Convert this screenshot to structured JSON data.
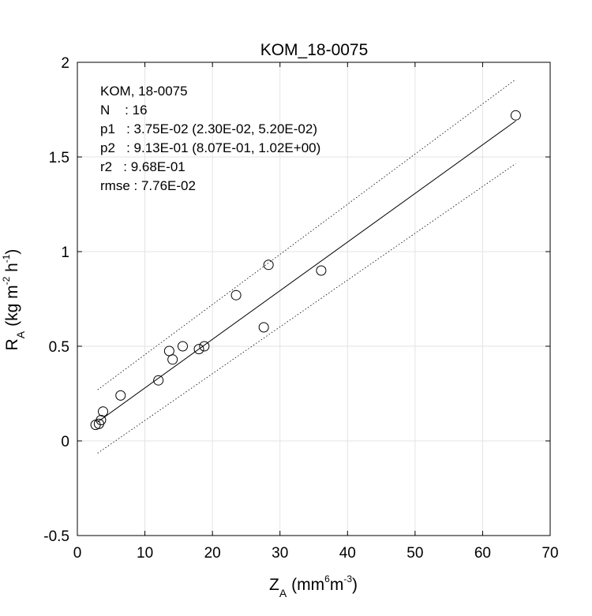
{
  "chart_data": {
    "type": "scatter",
    "title": "KOM_18-0075",
    "xlabel": {
      "main": "Z",
      "sub": "A",
      "pre": "(mm",
      "sup1": "6",
      "mid": "m",
      "sup2": "-3",
      "post": ")"
    },
    "ylabel": {
      "main": "R",
      "sub": "A",
      "pre": "(kg m",
      "sup1": "-2",
      "mid": " h",
      "sup2": "-1",
      "post": ")"
    },
    "xlim": [
      0,
      70
    ],
    "ylim": [
      -0.5,
      2
    ],
    "xticks": [
      0,
      10,
      20,
      30,
      40,
      50,
      60,
      70
    ],
    "yticks": [
      -0.5,
      0,
      0.5,
      1,
      1.5,
      2
    ],
    "ytick_labels": [
      "-0.5",
      "0",
      "0.5",
      "1",
      "1.5",
      "2"
    ],
    "grid": true,
    "points": [
      {
        "x": 2.7,
        "y": 0.085
      },
      {
        "x": 3.2,
        "y": 0.09
      },
      {
        "x": 3.5,
        "y": 0.11
      },
      {
        "x": 3.8,
        "y": 0.155
      },
      {
        "x": 6.4,
        "y": 0.24
      },
      {
        "x": 12.0,
        "y": 0.32
      },
      {
        "x": 13.6,
        "y": 0.475
      },
      {
        "x": 14.1,
        "y": 0.43
      },
      {
        "x": 15.6,
        "y": 0.5
      },
      {
        "x": 18.0,
        "y": 0.485
      },
      {
        "x": 18.8,
        "y": 0.5
      },
      {
        "x": 23.5,
        "y": 0.77
      },
      {
        "x": 27.6,
        "y": 0.6
      },
      {
        "x": 28.3,
        "y": 0.93
      },
      {
        "x": 36.1,
        "y": 0.9
      },
      {
        "x": 64.9,
        "y": 1.72
      }
    ],
    "fit_line": {
      "x": [
        3.0,
        64.9
      ],
      "y": [
        0.1,
        1.69
      ]
    },
    "upper_bound": {
      "x": [
        3.0,
        64.9
      ],
      "y": [
        0.27,
        1.91
      ]
    },
    "lower_bound": {
      "x": [
        3.0,
        64.9
      ],
      "y": [
        -0.065,
        1.465
      ]
    },
    "annotations": [
      "KOM, 18-0075",
      "N    : 16",
      "p1   : 3.75E-02 (2.30E-02, 5.20E-02)",
      "p2   : 9.13E-01 (8.07E-01, 1.02E+00)",
      "r2   : 9.68E-01",
      "rmse : 7.76E-02"
    ]
  }
}
